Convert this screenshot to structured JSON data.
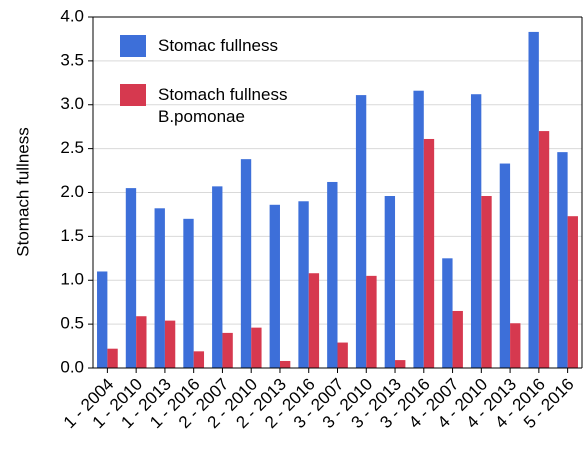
{
  "chart_data": {
    "type": "bar",
    "y_label": "Stomach fullness",
    "categories": [
      "1 - 2004",
      "1 - 2010",
      "1 - 2013",
      "1 - 2016",
      "2 - 2007",
      "2 - 2010",
      "2 - 2013",
      "2 - 2016",
      "3 - 2007",
      "3 - 2010",
      "3 - 2013",
      "3 - 2016",
      "4 - 2007",
      "4 - 2010",
      "4 - 2013",
      "4 - 2016",
      "5 - 2016"
    ],
    "series": [
      {
        "name": "Stomac fullness",
        "color": "#3d6fd9",
        "values": [
          1.1,
          2.05,
          1.82,
          1.7,
          2.07,
          2.38,
          1.86,
          1.9,
          2.12,
          3.11,
          1.96,
          3.16,
          1.25,
          3.12,
          2.33,
          3.83,
          2.46
        ]
      },
      {
        "name": "Stomach fullness B.pomonae",
        "color": "#d6394f",
        "values": [
          0.22,
          0.59,
          0.54,
          0.19,
          0.4,
          0.46,
          0.08,
          1.08,
          0.29,
          1.05,
          0.09,
          2.61,
          0.65,
          1.96,
          0.51,
          2.7,
          1.73
        ]
      }
    ],
    "ylim": [
      0,
      4
    ],
    "yticks": [
      {
        "value": 0,
        "label": "0.0"
      },
      0.5,
      {
        "value": 1,
        "label": "1.0"
      },
      1.5,
      {
        "value": 2,
        "label": "2.0"
      },
      2.5,
      {
        "value": 3,
        "label": "3.0"
      },
      3.5,
      {
        "value": 4,
        "label": "4.0"
      }
    ],
    "grid": true,
    "legend": "upper-left"
  }
}
